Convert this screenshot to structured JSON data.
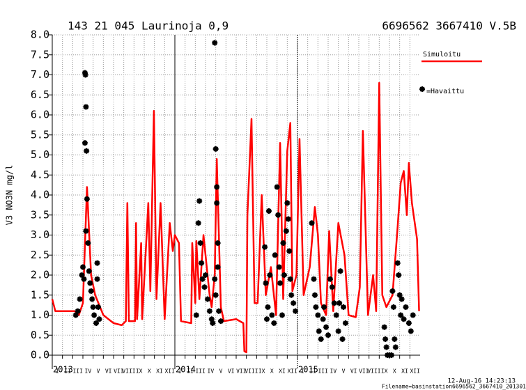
{
  "chart_data": {
    "type": "line",
    "title": "143 21 045 Laurinoja 0,9",
    "subtitle": "6696562 3667410 V.5B",
    "ylabel": "V3 NO3N mg/l",
    "footer": [
      "12-Aug-16 14:23:13",
      "Filename=basinstation6696562_3667410_201301"
    ],
    "legend": "right",
    "grid": true,
    "xlim": [
      0,
      36
    ],
    "ylim": [
      0,
      8
    ],
    "yticks": [
      {
        "value": 8,
        "label": "8.0"
      },
      7.5,
      {
        "value": 7,
        "label": "7.0"
      },
      6.5,
      {
        "value": 6,
        "label": "6.0"
      },
      5.5,
      {
        "value": 5,
        "label": "5.0"
      },
      4.5,
      {
        "value": 4,
        "label": "4.0"
      },
      3.5,
      {
        "value": 3,
        "label": "3.0"
      },
      2.5,
      {
        "value": 2,
        "label": "2.0"
      },
      1.5,
      {
        "value": 1,
        "label": "1.0"
      },
      0.5,
      {
        "value": 0,
        "label": "0.0"
      }
    ],
    "year_ticks": [
      {
        "value": 0,
        "label": "2013"
      },
      {
        "value": 12,
        "label": "2014"
      },
      {
        "value": 24,
        "label": "2015"
      }
    ],
    "xticks": [
      {
        "value": 0,
        "label": "I"
      },
      {
        "value": 1,
        "label": "II"
      },
      {
        "value": 2,
        "label": "III"
      },
      {
        "value": 3,
        "label": "IV"
      },
      {
        "value": 4,
        "label": "V"
      },
      {
        "value": 5,
        "label": "VI"
      },
      {
        "value": 6,
        "label": "VII"
      },
      {
        "value": 7,
        "label": "VIII"
      },
      {
        "value": 8,
        "label": "IX"
      },
      {
        "value": 9,
        "label": "X"
      },
      {
        "value": 10,
        "label": "XI"
      },
      {
        "value": 11,
        "label": "XII"
      },
      {
        "value": 12,
        "label": "I"
      },
      {
        "value": 13,
        "label": "II"
      },
      {
        "value": 14,
        "label": "III"
      },
      {
        "value": 15,
        "label": "IV"
      },
      {
        "value": 16,
        "label": "V"
      },
      {
        "value": 17,
        "label": "VI"
      },
      {
        "value": 18,
        "label": "VII"
      },
      {
        "value": 19,
        "label": "VIII"
      },
      {
        "value": 20,
        "label": "IX"
      },
      {
        "value": 21,
        "label": "X"
      },
      {
        "value": 22,
        "label": "XI"
      },
      {
        "value": 23,
        "label": "XII"
      },
      {
        "value": 24,
        "label": "I"
      },
      {
        "value": 25,
        "label": "II"
      },
      {
        "value": 26,
        "label": "III"
      },
      {
        "value": 27,
        "label": "IV"
      },
      {
        "value": 28,
        "label": "V"
      },
      {
        "value": 29,
        "label": "VI"
      },
      {
        "value": 30,
        "label": "VII"
      },
      {
        "value": 31,
        "label": "VIII"
      },
      {
        "value": 32,
        "label": "IX"
      },
      {
        "value": 33,
        "label": "X"
      },
      {
        "value": 34,
        "label": "XI"
      },
      {
        "value": 35,
        "label": "XII"
      }
    ],
    "series": [
      {
        "name": "Simuloitu",
        "type": "line",
        "color": "#ff0000",
        "x": [
          0,
          0.3,
          2.2,
          2.6,
          3.0,
          3.4,
          3.8,
          4.2,
          5.0,
          6.0,
          6.8,
          7.2,
          7.35,
          7.5,
          8.1,
          8.2,
          8.3,
          8.7,
          8.8,
          9.4,
          9.6,
          9.95,
          10.2,
          10.6,
          11.0,
          11.5,
          11.8,
          12.0,
          12.4,
          12.6,
          13.6,
          13.7,
          14.0,
          14.1,
          14.4,
          14.8,
          15.4,
          15.6,
          15.9,
          16.1,
          16.5,
          16.8,
          18.0,
          18.7,
          18.8,
          19.0,
          19.1,
          19.5,
          19.8,
          20.1,
          20.5,
          20.9,
          21.4,
          21.9,
          22.3,
          22.6,
          23.0,
          23.3,
          23.5,
          23.9,
          24.2,
          24.6,
          25.2,
          25.7,
          26.0,
          26.3,
          26.8,
          27.1,
          27.5,
          28.0,
          28.6,
          29.0,
          29.7,
          30.1,
          30.4,
          30.9,
          31.4,
          31.7,
          32.0,
          32.3,
          32.7,
          33.3,
          33.8,
          34.1,
          34.4,
          34.7,
          34.9,
          35.2,
          35.7,
          35.9
        ],
        "values": [
          1.4,
          1.1,
          1.1,
          1.0,
          1.3,
          4.2,
          2.0,
          1.5,
          1.0,
          0.8,
          0.75,
          0.85,
          3.8,
          0.85,
          0.85,
          3.3,
          0.9,
          2.8,
          0.9,
          3.8,
          1.6,
          6.1,
          1.4,
          3.8,
          0.9,
          3.3,
          2.6,
          3.0,
          2.8,
          0.85,
          0.8,
          2.8,
          1.3,
          2.85,
          1.4,
          3.0,
          1.5,
          1.2,
          2.0,
          4.9,
          1.2,
          0.85,
          0.9,
          0.8,
          0.1,
          0.07,
          3.5,
          5.9,
          1.3,
          1.3,
          4.0,
          1.5,
          2.2,
          1.0,
          5.3,
          1.4,
          5.1,
          5.8,
          1.6,
          2.0,
          5.4,
          1.5,
          2.2,
          3.7,
          3.0,
          1.3,
          1.0,
          3.1,
          1.1,
          3.3,
          2.5,
          1.0,
          0.95,
          1.7,
          5.6,
          1.0,
          2.0,
          1.1,
          6.8,
          1.5,
          1.2,
          1.5,
          3.2,
          4.3,
          4.6,
          3.5,
          4.8,
          3.8,
          2.9,
          1.1
        ]
      },
      {
        "name": "=Havaittu",
        "type": "scatter",
        "color": "#000000",
        "x": [
          2.3,
          2.5,
          2.7,
          2.9,
          3.0,
          3.1,
          3.2,
          3.25,
          3.3,
          3.2,
          3.35,
          3.4,
          3.3,
          3.5,
          3.6,
          3.7,
          3.8,
          3.9,
          4.0,
          4.1,
          4.3,
          4.4,
          4.4,
          4.5,
          4.6,
          14.1,
          14.3,
          14.4,
          14.5,
          14.6,
          14.7,
          14.9,
          15.0,
          15.2,
          15.4,
          15.6,
          15.7,
          15.9,
          16.0,
          16.1,
          16.1,
          16.2,
          16.0,
          16.3,
          16.5,
          15.9,
          16.2,
          20.8,
          20.9,
          21.0,
          21.1,
          21.2,
          21.3,
          21.5,
          21.7,
          21.8,
          22.0,
          22.1,
          22.2,
          22.3,
          22.5,
          22.6,
          22.7,
          22.9,
          23.0,
          23.1,
          23.2,
          23.3,
          23.4,
          23.6,
          23.8,
          25.4,
          25.6,
          25.7,
          25.8,
          26.0,
          26.1,
          26.3,
          26.5,
          26.6,
          26.8,
          27.0,
          27.2,
          27.4,
          27.6,
          27.8,
          28.0,
          28.1,
          28.2,
          28.4,
          28.5,
          28.7,
          32.5,
          32.6,
          32.7,
          32.8,
          33.0,
          33.2,
          33.3,
          33.4,
          33.5,
          33.6,
          33.8,
          33.9,
          34.0,
          34.1,
          34.2,
          34.4,
          34.6,
          34.9,
          35.1,
          35.3
        ],
        "values": [
          1.0,
          1.1,
          1.4,
          2.0,
          2.2,
          1.9,
          7.05,
          7.0,
          6.2,
          5.3,
          5.1,
          3.9,
          3.1,
          2.8,
          2.1,
          1.8,
          1.6,
          1.4,
          1.2,
          1.0,
          0.8,
          2.3,
          1.9,
          1.2,
          0.9,
          1.0,
          3.3,
          3.85,
          2.8,
          2.3,
          1.9,
          1.7,
          2.0,
          1.4,
          1.1,
          0.9,
          0.8,
          7.8,
          5.15,
          4.2,
          3.8,
          2.8,
          1.5,
          1.1,
          0.85,
          1.9,
          2.2,
          2.7,
          1.8,
          0.9,
          1.2,
          3.6,
          2.0,
          1.0,
          0.8,
          2.5,
          4.2,
          3.5,
          2.2,
          1.8,
          1.0,
          2.8,
          2.0,
          3.1,
          3.8,
          3.4,
          2.6,
          1.9,
          1.5,
          1.3,
          1.1,
          3.3,
          1.9,
          1.5,
          1.2,
          1.0,
          0.6,
          0.4,
          0.9,
          1.2,
          0.7,
          0.5,
          1.9,
          1.7,
          1.3,
          1.0,
          0.6,
          1.3,
          2.1,
          0.4,
          1.2,
          0.8,
          0.7,
          0.4,
          0.2,
          0.0,
          0.0,
          0.0,
          1.6,
          1.2,
          0.4,
          0.2,
          2.3,
          2.0,
          1.5,
          1.0,
          1.4,
          0.9,
          1.2,
          0.8,
          0.6,
          1.0
        ]
      }
    ]
  }
}
